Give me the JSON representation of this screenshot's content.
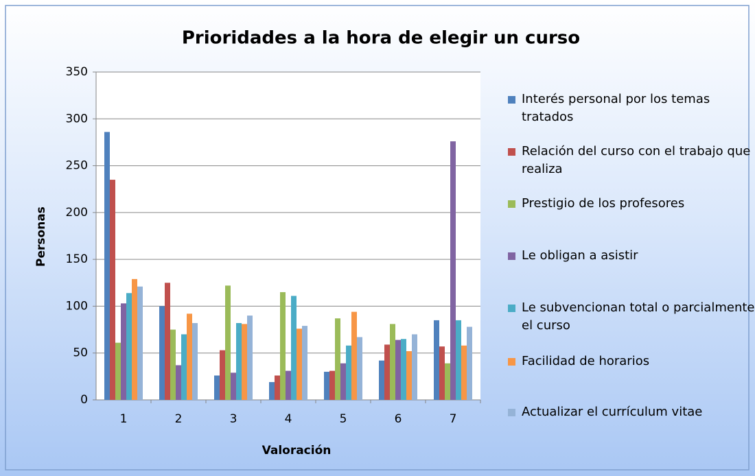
{
  "chart_data": {
    "type": "bar",
    "title": "Prioridades a la hora de elegir un curso",
    "x_label": "Valoración",
    "y_label": "Personas",
    "categories": [
      "1",
      "2",
      "3",
      "4",
      "5",
      "6",
      "7"
    ],
    "series": [
      {
        "name": "Interés personal por los temas tratados",
        "color": "#4f81bd",
        "values": [
          286,
          100,
          26,
          19,
          30,
          42,
          85
        ]
      },
      {
        "name": "Relación del curso con el trabajo que realiza",
        "color": "#c0504d",
        "values": [
          235,
          125,
          53,
          26,
          31,
          59,
          57
        ]
      },
      {
        "name": "Prestigio de los profesores",
        "color": "#9bbb59",
        "values": [
          61,
          75,
          122,
          115,
          87,
          81,
          39
        ]
      },
      {
        "name": "Le obligan a asistir",
        "color": "#8064a2",
        "values": [
          103,
          37,
          29,
          31,
          39,
          64,
          276
        ]
      },
      {
        "name": "Le subvencionan total o parcialmente el curso",
        "color": "#4bacc6",
        "values": [
          114,
          70,
          82,
          111,
          58,
          65,
          85
        ]
      },
      {
        "name": "Facilidad de horarios",
        "color": "#f79646",
        "values": [
          129,
          92,
          81,
          76,
          94,
          52,
          58
        ]
      },
      {
        "name": "Actualizar el currículum vitae",
        "color": "#95b3d7",
        "values": [
          121,
          82,
          90,
          79,
          67,
          70,
          78
        ]
      }
    ],
    "ylim": [
      0,
      350
    ],
    "yticks": [
      0,
      50,
      100,
      150,
      200,
      250,
      300,
      350
    ],
    "grid": true,
    "legend": "right"
  }
}
